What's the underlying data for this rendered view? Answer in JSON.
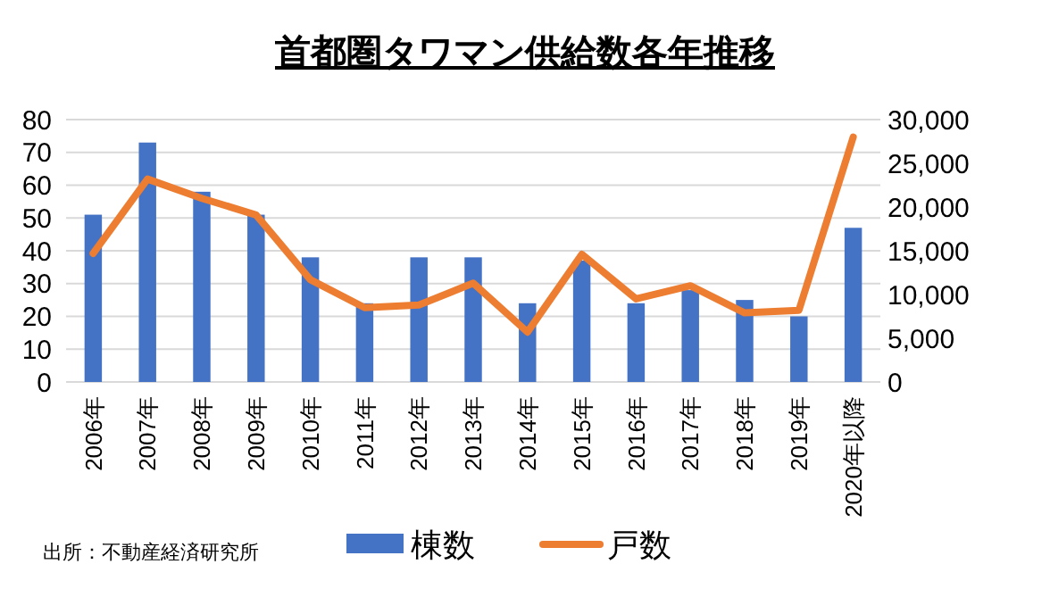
{
  "chart_data": {
    "type": "bar",
    "title": "首都圏タワマン供給数各年推移",
    "categories": [
      "2006年",
      "2007年",
      "2008年",
      "2009年",
      "2010年",
      "2011年",
      "2012年",
      "2013年",
      "2014年",
      "2015年",
      "2016年",
      "2017年",
      "2018年",
      "2019年",
      "2020年以降"
    ],
    "series": [
      {
        "name": "棟数",
        "color": "#4472c4",
        "values": [
          51,
          73,
          58,
          51,
          38,
          24,
          38,
          38,
          24,
          37,
          24,
          28,
          25,
          20,
          47
        ]
      },
      {
        "name": "戸数",
        "type": "line",
        "axis": "y2",
        "color": "#ed7d31",
        "values": [
          14700,
          23200,
          21000,
          19100,
          11700,
          8500,
          8800,
          11300,
          5700,
          14600,
          9500,
          11000,
          7900,
          8200,
          28000
        ]
      }
    ],
    "ylim": [
      0,
      80
    ],
    "yticks": [
      0,
      10,
      20,
      30,
      40,
      50,
      60,
      70,
      80
    ],
    "y2lim": [
      0,
      30000
    ],
    "y2ticks": [
      {
        "value": 0,
        "label": "0"
      },
      {
        "value": 5000,
        "label": "5,000"
      },
      {
        "value": 10000,
        "label": "10,000"
      },
      {
        "value": 15000,
        "label": "15,000"
      },
      {
        "value": 20000,
        "label": "20,000"
      },
      {
        "value": 25000,
        "label": "25,000"
      },
      {
        "value": 30000,
        "label": "30,000"
      }
    ],
    "grid": "y",
    "legend": "bottom",
    "marker": "none",
    "line_style": "solid",
    "annotations": [
      "出所：不動産経済研究所"
    ]
  }
}
